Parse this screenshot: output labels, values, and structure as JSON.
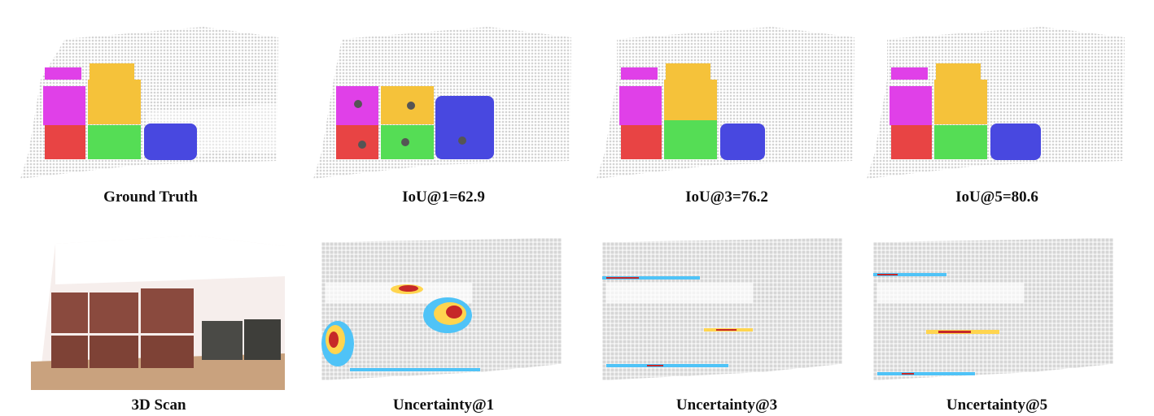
{
  "row1": {
    "captions": [
      "Ground  Truth",
      "IoU@1=62.9",
      "IoU@3=76.2",
      "IoU@5=80.6"
    ]
  },
  "row2": {
    "captions": [
      "3D Scan",
      "Uncertainty@1",
      "Uncertainty@3",
      "Uncertainty@5"
    ]
  },
  "colors": {
    "background_points": "#d8d8d8",
    "segments": [
      "#e040e8",
      "#f5c23a",
      "#e84444",
      "#55dd55",
      "#4848e0"
    ],
    "click_dot": "#555555",
    "heat_low": "#4fc3f7",
    "heat_mid": "#ffd54f",
    "heat_high": "#c62828",
    "scan_box": "#8a4a3e",
    "scan_dark": "#4a4a46",
    "scan_wall": "#ffffff",
    "scan_floor": "#c9a27e"
  }
}
